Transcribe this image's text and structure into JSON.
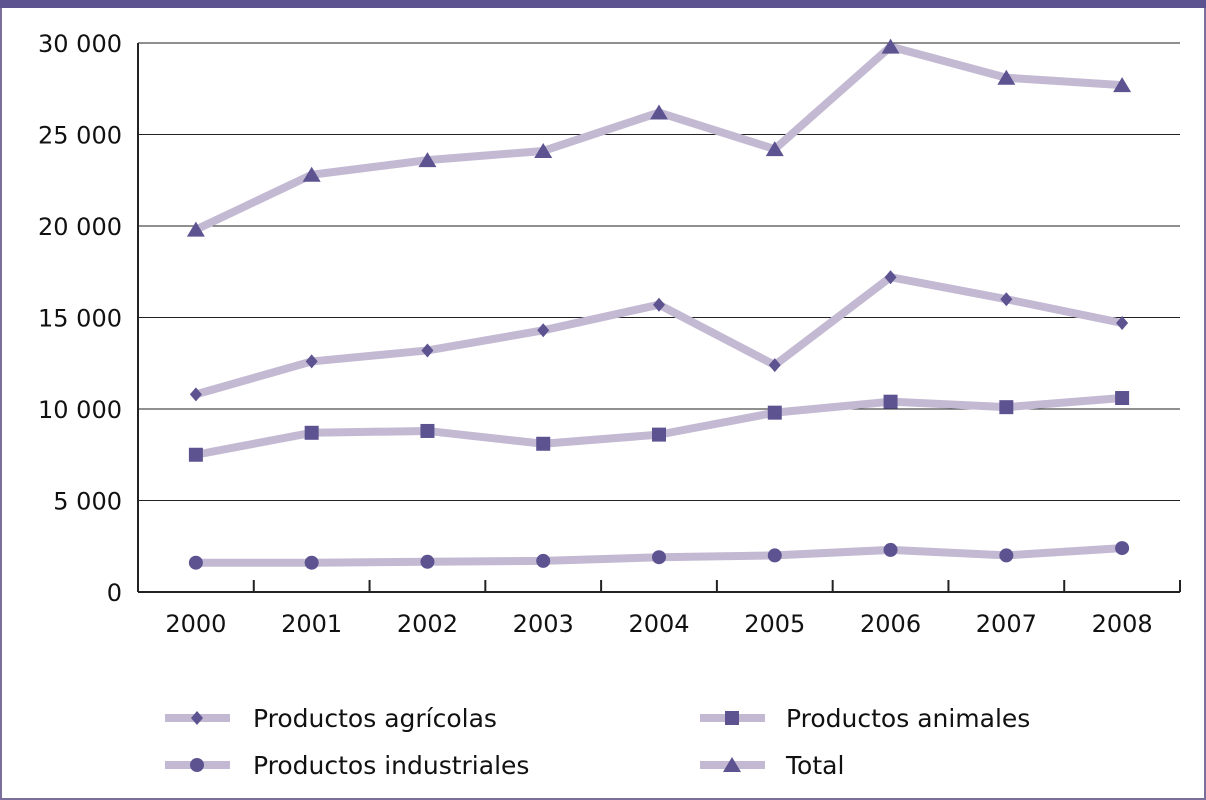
{
  "chart_data": {
    "type": "line",
    "categories": [
      "2000",
      "2001",
      "2002",
      "2003",
      "2004",
      "2005",
      "2006",
      "2007",
      "2008"
    ],
    "ylim": [
      0,
      30000
    ],
    "yticks": [
      0,
      5000,
      10000,
      15000,
      20000,
      25000,
      30000
    ],
    "ytick_labels": [
      "0",
      "5 000",
      "10 000",
      "15 000",
      "20 000",
      "25 000",
      "30 000"
    ],
    "grid": "horizontal",
    "legend_position": "bottom",
    "series": [
      {
        "name": "Productos agrícolas",
        "marker": "diamond",
        "values": [
          10800,
          12600,
          13200,
          14300,
          15700,
          12400,
          17200,
          16000,
          14700
        ]
      },
      {
        "name": "Productos animales",
        "marker": "square",
        "values": [
          7500,
          8700,
          8800,
          8100,
          8600,
          9800,
          10400,
          10100,
          10600
        ]
      },
      {
        "name": "Productos industriales",
        "marker": "circle",
        "values": [
          1600,
          1600,
          1650,
          1700,
          1900,
          2000,
          2300,
          2000,
          2400
        ]
      },
      {
        "name": "Total",
        "marker": "triangle",
        "values": [
          19800,
          22800,
          23600,
          24100,
          26200,
          24200,
          29800,
          28100,
          27700
        ]
      }
    ],
    "colors": {
      "line": "#c3b9d2",
      "marker": "#5e5391",
      "axis": "#222222"
    }
  }
}
